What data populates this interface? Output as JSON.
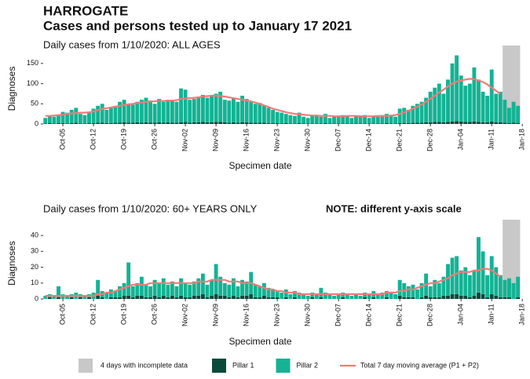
{
  "title": "HARROGATE",
  "subtitle": "Cases and persons tested up to January 17 2021",
  "chart_data": [
    {
      "type": "bar",
      "title": "Daily cases from 1/10/2020: ALL AGES",
      "xlabel": "Specimen date",
      "ylabel": "Diagnoses",
      "ylim": [
        0,
        175
      ],
      "yticks": [
        0,
        50,
        100,
        150
      ],
      "shade": {
        "name": "4 days with incomplete data",
        "color": "#c8c8c8",
        "days": 4
      },
      "categories": [
        null,
        null,
        null,
        null,
        "Oct-05",
        null,
        null,
        null,
        null,
        null,
        null,
        "Oct-12",
        null,
        null,
        null,
        null,
        null,
        null,
        "Oct-19",
        null,
        null,
        null,
        null,
        null,
        null,
        "Oct-26",
        null,
        null,
        null,
        null,
        null,
        null,
        "Nov-02",
        null,
        null,
        null,
        null,
        null,
        null,
        "Nov-09",
        null,
        null,
        null,
        null,
        null,
        null,
        "Nov-16",
        null,
        null,
        null,
        null,
        null,
        null,
        "Nov-23",
        null,
        null,
        null,
        null,
        null,
        null,
        "Nov-30",
        null,
        null,
        null,
        null,
        null,
        null,
        "Dec-07",
        null,
        null,
        null,
        null,
        null,
        null,
        "Dec-14",
        null,
        null,
        null,
        null,
        null,
        null,
        "Dec-21",
        null,
        null,
        null,
        null,
        null,
        null,
        "Dec-28",
        null,
        null,
        null,
        null,
        null,
        null,
        "Jan-04",
        null,
        null,
        null,
        null,
        null,
        null,
        "Jan-11",
        null,
        null,
        null,
        null,
        null,
        null,
        "Jan-18"
      ],
      "series": [
        {
          "name": "Pillar 1",
          "color": "#0b4a3b",
          "values": [
            1,
            2,
            1,
            2,
            2,
            1,
            2,
            3,
            1,
            1,
            2,
            2,
            3,
            3,
            2,
            2,
            3,
            3,
            4,
            3,
            3,
            4,
            3,
            4,
            3,
            3,
            4,
            3,
            4,
            3,
            3,
            4,
            5,
            3,
            4,
            4,
            5,
            4,
            4,
            5,
            5,
            4,
            3,
            4,
            3,
            4,
            4,
            3,
            3,
            3,
            3,
            2,
            2,
            2,
            1,
            2,
            1,
            1,
            2,
            1,
            1,
            1,
            1,
            1,
            2,
            1,
            1,
            1,
            1,
            1,
            1,
            1,
            1,
            1,
            1,
            1,
            1,
            1,
            2,
            1,
            1,
            2,
            2,
            2,
            3,
            3,
            3,
            4,
            4,
            5,
            5,
            4,
            5,
            6,
            7,
            6,
            5,
            5,
            6,
            5,
            4,
            4,
            6,
            4,
            4,
            3,
            2,
            3,
            2,
            null
          ]
        },
        {
          "name": "Pillar 2",
          "color": "#13b394",
          "values": [
            14,
            18,
            17,
            20,
            28,
            27,
            33,
            37,
            24,
            21,
            28,
            36,
            42,
            47,
            33,
            38,
            42,
            52,
            56,
            47,
            45,
            51,
            57,
            61,
            55,
            47,
            58,
            52,
            56,
            55,
            52,
            84,
            80,
            57,
            58,
            64,
            67,
            61,
            66,
            70,
            75,
            56,
            55,
            61,
            52,
            66,
            58,
            52,
            47,
            49,
            42,
            38,
            33,
            28,
            27,
            23,
            21,
            19,
            26,
            17,
            14,
            21,
            19,
            17,
            23,
            14,
            19,
            17,
            21,
            19,
            14,
            19,
            17,
            21,
            14,
            19,
            17,
            21,
            23,
            19,
            17,
            36,
            38,
            33,
            42,
            47,
            52,
            61,
            76,
            85,
            95,
            71,
            105,
            144,
            163,
            114,
            90,
            95,
            134,
            105,
            76,
            66,
            129,
            71,
            76,
            57,
            38,
            52,
            43,
            null
          ]
        },
        {
          "name": "Total 7 day moving average (P1 + P2)",
          "type": "line",
          "color": "#f07b78",
          "values": [
            20,
            20,
            21,
            22,
            23,
            25,
            26,
            27,
            28,
            28,
            29,
            31,
            34,
            37,
            39,
            41,
            43,
            45,
            47,
            49,
            50,
            52,
            53,
            55,
            56,
            56,
            57,
            57,
            58,
            58,
            59,
            62,
            63,
            64,
            65,
            66,
            68,
            69,
            70,
            70,
            69,
            68,
            66,
            64,
            62,
            60,
            58,
            56,
            53,
            50,
            46,
            42,
            38,
            35,
            32,
            29,
            27,
            25,
            24,
            23,
            22,
            21,
            21,
            20,
            20,
            20,
            19,
            19,
            19,
            20,
            20,
            20,
            19,
            19,
            19,
            19,
            20,
            20,
            20,
            21,
            22,
            25,
            29,
            33,
            38,
            43,
            48,
            55,
            62,
            70,
            78,
            85,
            93,
            100,
            105,
            108,
            110,
            112,
            111,
            108,
            104,
            98,
            90,
            82,
            75,
            null,
            null,
            null,
            null,
            null
          ]
        }
      ]
    },
    {
      "type": "bar",
      "title": "Daily cases from 1/10/2020: 60+ YEARS ONLY",
      "note": "NOTE: different y-axis scale",
      "xlabel": "Specimen date",
      "ylabel": "Diagnoses",
      "ylim": [
        0,
        45
      ],
      "yticks": [
        0,
        10,
        20,
        30,
        40
      ],
      "shade": {
        "color": "#c8c8c8",
        "days": 4
      },
      "categories": [
        null,
        null,
        null,
        null,
        "Oct-05",
        null,
        null,
        null,
        null,
        null,
        null,
        "Oct-12",
        null,
        null,
        null,
        null,
        null,
        null,
        "Oct-19",
        null,
        null,
        null,
        null,
        null,
        null,
        "Oct-26",
        null,
        null,
        null,
        null,
        null,
        null,
        "Nov-02",
        null,
        null,
        null,
        null,
        null,
        null,
        "Nov-09",
        null,
        null,
        null,
        null,
        null,
        null,
        "Nov-16",
        null,
        null,
        null,
        null,
        null,
        null,
        "Nov-23",
        null,
        null,
        null,
        null,
        null,
        null,
        "Nov-30",
        null,
        null,
        null,
        null,
        null,
        null,
        "Dec-07",
        null,
        null,
        null,
        null,
        null,
        null,
        "Dec-14",
        null,
        null,
        null,
        null,
        null,
        null,
        "Dec-21",
        null,
        null,
        null,
        null,
        null,
        null,
        "Dec-28",
        null,
        null,
        null,
        null,
        null,
        null,
        "Jan-04",
        null,
        null,
        null,
        null,
        null,
        null,
        "Jan-11",
        null,
        null,
        null,
        null,
        null,
        null,
        "Jan-18"
      ],
      "series": [
        {
          "color": "#0b4a3b",
          "values": [
            0,
            1,
            0,
            1,
            0,
            0,
            1,
            0,
            1,
            0,
            1,
            0,
            2,
            1,
            0,
            1,
            1,
            1,
            2,
            2,
            1,
            2,
            2,
            1,
            1,
            2,
            1,
            2,
            1,
            2,
            1,
            2,
            1,
            1,
            2,
            2,
            3,
            1,
            2,
            3,
            2,
            2,
            1,
            2,
            1,
            2,
            2,
            3,
            1,
            1,
            2,
            1,
            1,
            1,
            0,
            1,
            0,
            1,
            0,
            0,
            0,
            1,
            0,
            1,
            0,
            0,
            0,
            0,
            1,
            0,
            0,
            0,
            0,
            1,
            0,
            1,
            0,
            0,
            1,
            0,
            0,
            2,
            1,
            1,
            1,
            0,
            1,
            2,
            1,
            1,
            1,
            2,
            2,
            3,
            3,
            2,
            2,
            1,
            2,
            4,
            3,
            1,
            3,
            2,
            1,
            1,
            1,
            0,
            1,
            null
          ]
        },
        {
          "color": "#13b394",
          "values": [
            2,
            2,
            2,
            7,
            3,
            2,
            2,
            4,
            2,
            2,
            2,
            4,
            10,
            4,
            4,
            5,
            4,
            7,
            8,
            21,
            7,
            8,
            12,
            8,
            7,
            10,
            9,
            11,
            8,
            9,
            7,
            11,
            9,
            8,
            9,
            11,
            13,
            8,
            10,
            19,
            12,
            8,
            8,
            11,
            7,
            10,
            9,
            14,
            8,
            7,
            8,
            6,
            5,
            4,
            4,
            5,
            3,
            4,
            4,
            3,
            2,
            3,
            3,
            6,
            4,
            3,
            2,
            3,
            3,
            3,
            2,
            3,
            2,
            3,
            3,
            4,
            3,
            4,
            4,
            4,
            3,
            10,
            9,
            7,
            8,
            6,
            9,
            14,
            7,
            11,
            9,
            12,
            20,
            23,
            24,
            16,
            18,
            14,
            16,
            35,
            27,
            14,
            24,
            18,
            14,
            11,
            12,
            10,
            13,
            null
          ]
        },
        {
          "type": "line",
          "color": "#f07b78",
          "values": [
            2,
            2,
            2,
            2,
            2,
            2,
            2,
            2,
            2,
            2,
            2,
            2,
            3,
            3,
            4,
            4,
            5,
            6,
            7,
            8,
            9,
            9,
            9,
            9,
            10,
            10,
            10,
            10,
            10,
            10,
            10,
            10,
            10,
            10,
            10,
            11,
            11,
            11,
            12,
            12,
            12,
            12,
            11,
            11,
            11,
            10,
            10,
            10,
            9,
            8,
            7,
            6,
            6,
            5,
            5,
            4,
            4,
            4,
            3,
            3,
            3,
            3,
            3,
            3,
            3,
            3,
            3,
            3,
            3,
            3,
            3,
            3,
            3,
            3,
            3,
            3,
            3,
            3,
            4,
            4,
            4,
            5,
            5,
            6,
            6,
            7,
            8,
            9,
            10,
            10,
            11,
            12,
            13,
            15,
            16,
            17,
            17,
            17,
            18,
            18,
            19,
            19,
            18,
            16,
            14,
            null,
            null,
            null,
            null,
            null
          ]
        }
      ]
    }
  ]
}
